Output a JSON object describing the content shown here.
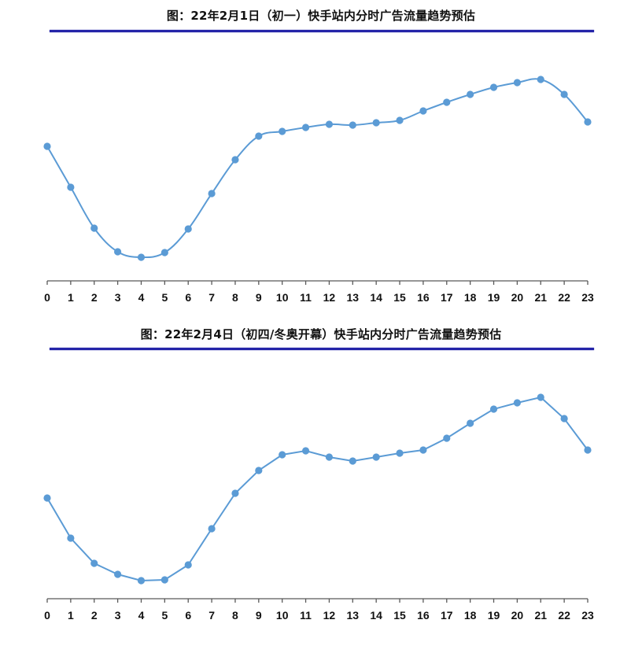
{
  "colors": {
    "line": "#5b9bd5",
    "marker": "#5b9bd5",
    "title_rule": "#2424a8",
    "axis": "#595959"
  },
  "chart_data": [
    {
      "type": "line",
      "title": "图：22年2月1日（初一）快手站内分时广告流量趋势预估",
      "xlabel": "",
      "ylabel": "",
      "smooth": true,
      "grid": false,
      "legend": "none",
      "y_axis_visible": false,
      "categories": [
        "0",
        "1",
        "2",
        "3",
        "4",
        "5",
        "6",
        "7",
        "8",
        "9",
        "10",
        "11",
        "12",
        "13",
        "14",
        "15",
        "16",
        "17",
        "18",
        "19",
        "20",
        "21",
        "22",
        "23"
      ],
      "series": [
        {
          "name": "流量趋势",
          "values": [
            171,
            119,
            67,
            37,
            30,
            36,
            66,
            111,
            154,
            184,
            190,
            195,
            199,
            198,
            201,
            204,
            216,
            227,
            237,
            246,
            252,
            256,
            237,
            202
          ]
        }
      ],
      "ylim": [
        0,
        260
      ]
    },
    {
      "type": "line",
      "title": "图：22年2月4日（初四/冬奥开幕）快手站内分时广告流量趋势预估",
      "xlabel": "",
      "ylabel": "",
      "smooth": false,
      "grid": false,
      "legend": "none",
      "y_axis_visible": false,
      "categories": [
        "0",
        "1",
        "2",
        "3",
        "4",
        "5",
        "6",
        "7",
        "8",
        "9",
        "10",
        "11",
        "12",
        "13",
        "14",
        "15",
        "16",
        "17",
        "18",
        "19",
        "20",
        "21",
        "22",
        "23"
      ],
      "series": [
        {
          "name": "流量趋势",
          "values": [
            128,
            77,
            45,
            31,
            23,
            24,
            43,
            89,
            134,
            163,
            183,
            188,
            180,
            175,
            180,
            185,
            189,
            204,
            223,
            241,
            249,
            256,
            229,
            189
          ]
        }
      ],
      "ylim": [
        0,
        260
      ]
    }
  ]
}
